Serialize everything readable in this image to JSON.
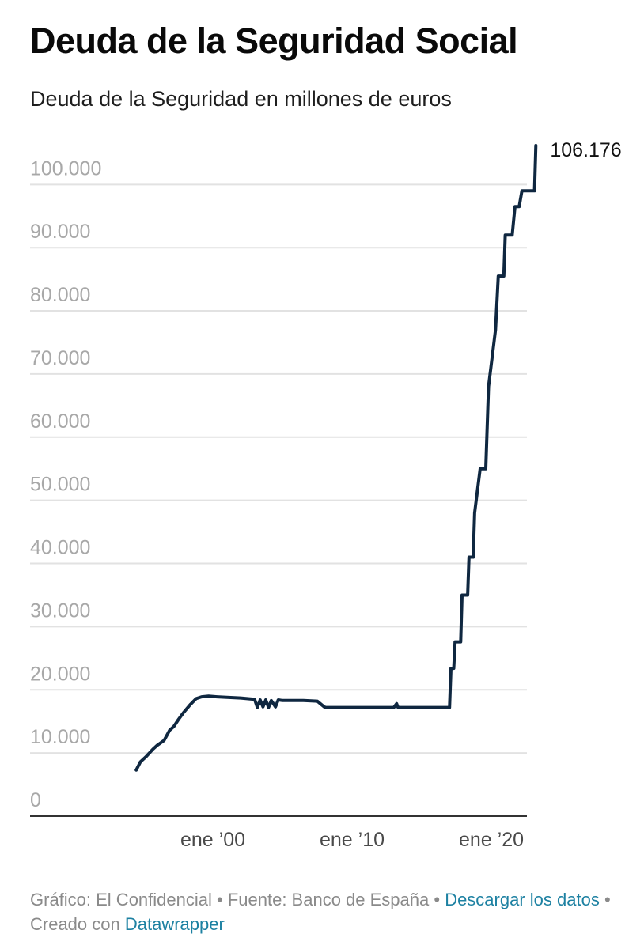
{
  "header": {
    "title": "Deuda de la Seguridad Social",
    "subtitle": "Deuda de la Seguridad en millones de euros"
  },
  "footer": {
    "chart_credit": "Gráfico: El Confidencial",
    "separator": " • ",
    "source": "Fuente: Banco de España",
    "download_link": "Descargar los datos",
    "created_with": "Creado con",
    "tool_link": "Datawrapper"
  },
  "colors": {
    "line": "#0f2740",
    "grid": "#e2e2e2",
    "axis": "#333333",
    "link": "#1d81a2"
  },
  "chart_data": {
    "type": "line",
    "title": "Deuda de la Seguridad Social",
    "subtitle": "Deuda de la Seguridad en millones de euros",
    "xlabel": "",
    "ylabel": "",
    "ylim": [
      0,
      106176
    ],
    "yticks": [
      0,
      10000,
      20000,
      30000,
      40000,
      50000,
      60000,
      70000,
      80000,
      90000,
      100000
    ],
    "ytick_labels": [
      "0",
      "10.000",
      "20.000",
      "30.000",
      "40.000",
      "50.000",
      "60.000",
      "70.000",
      "80.000",
      "90.000",
      "100.000"
    ],
    "xticks": [
      2000,
      2010,
      2020
    ],
    "xtick_labels": [
      "ene ’00",
      "ene ’10",
      "ene ’20"
    ],
    "grid": true,
    "end_label": "106.176",
    "series": [
      {
        "x": [
          1994.5,
          1994.8,
          1995.2,
          1995.7,
          1996.0,
          1996.5,
          1996.9,
          1997.2,
          1997.5,
          1997.9,
          1998.4,
          1998.8,
          1999.2,
          1999.7,
          2000.3,
          2001.0,
          2002.0,
          2003.0,
          2003.2,
          2003.4,
          2003.6,
          2003.8,
          2004.0,
          2004.2,
          2004.5,
          2004.7,
          2005.0,
          2005.5,
          2006.5,
          2007.5,
          2008.0,
          2008.1,
          2009.0,
          2011.0,
          2013.0,
          2013.2,
          2013.3,
          2015.0,
          2017.0,
          2017.1,
          2017.3,
          2017.4,
          2017.8,
          2017.9,
          2018.3,
          2018.4,
          2018.7,
          2018.8,
          2019.2,
          2019.6,
          2019.8,
          2020.3,
          2020.5,
          2020.7,
          2020.9,
          2021.0,
          2021.5,
          2021.7,
          2022.0,
          2022.2,
          2022.3,
          2022.4,
          2022.5,
          2022.6,
          2023.1,
          2023.2
        ],
        "y": [
          7300,
          8600,
          9400,
          10600,
          11200,
          12000,
          13600,
          14200,
          15200,
          16400,
          17700,
          18600,
          18900,
          19000,
          18900,
          18800,
          18700,
          18500,
          17200,
          18400,
          17300,
          18400,
          17200,
          18300,
          17300,
          18400,
          18300,
          18300,
          18300,
          18200,
          17300,
          17200,
          17200,
          17200,
          17200,
          17800,
          17200,
          17200,
          17200,
          23400,
          23400,
          27600,
          27600,
          35000,
          35000,
          41000,
          41000,
          48000,
          55000,
          55000,
          68000,
          77000,
          85500,
          85500,
          85500,
          92000,
          92000,
          96500,
          96500,
          99000,
          99000,
          99000,
          99000,
          99000,
          99000,
          106176
        ]
      }
    ]
  }
}
